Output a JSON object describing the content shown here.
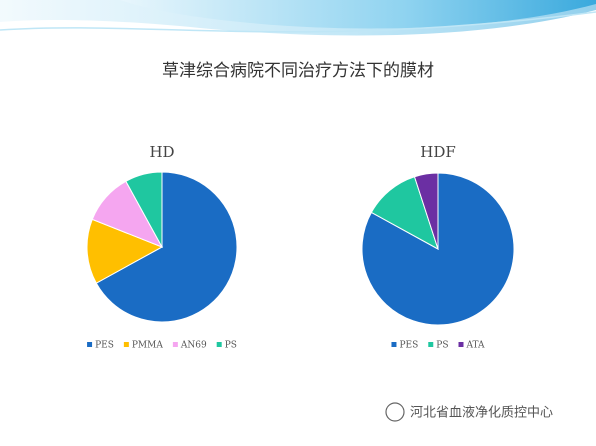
{
  "slide": {
    "title": "草津综合病院不同治疗方法下的膜材",
    "watermark": "河北省血液净化质控中心"
  },
  "chart_data": [
    {
      "type": "pie",
      "title": "HD",
      "categories": [
        "PES",
        "PMMA",
        "AN69",
        "PS"
      ],
      "values": [
        67,
        14,
        11,
        8
      ],
      "colors": [
        "#1a6cc4",
        "#ffbf00",
        "#f5a6f0",
        "#1fc7a0"
      ]
    },
    {
      "type": "pie",
      "title": "HDF",
      "categories": [
        "PES",
        "PS",
        "ATA"
      ],
      "values": [
        83,
        12,
        5
      ],
      "colors": [
        "#1a6cc4",
        "#1fc7a0",
        "#6b2fa3"
      ]
    }
  ]
}
